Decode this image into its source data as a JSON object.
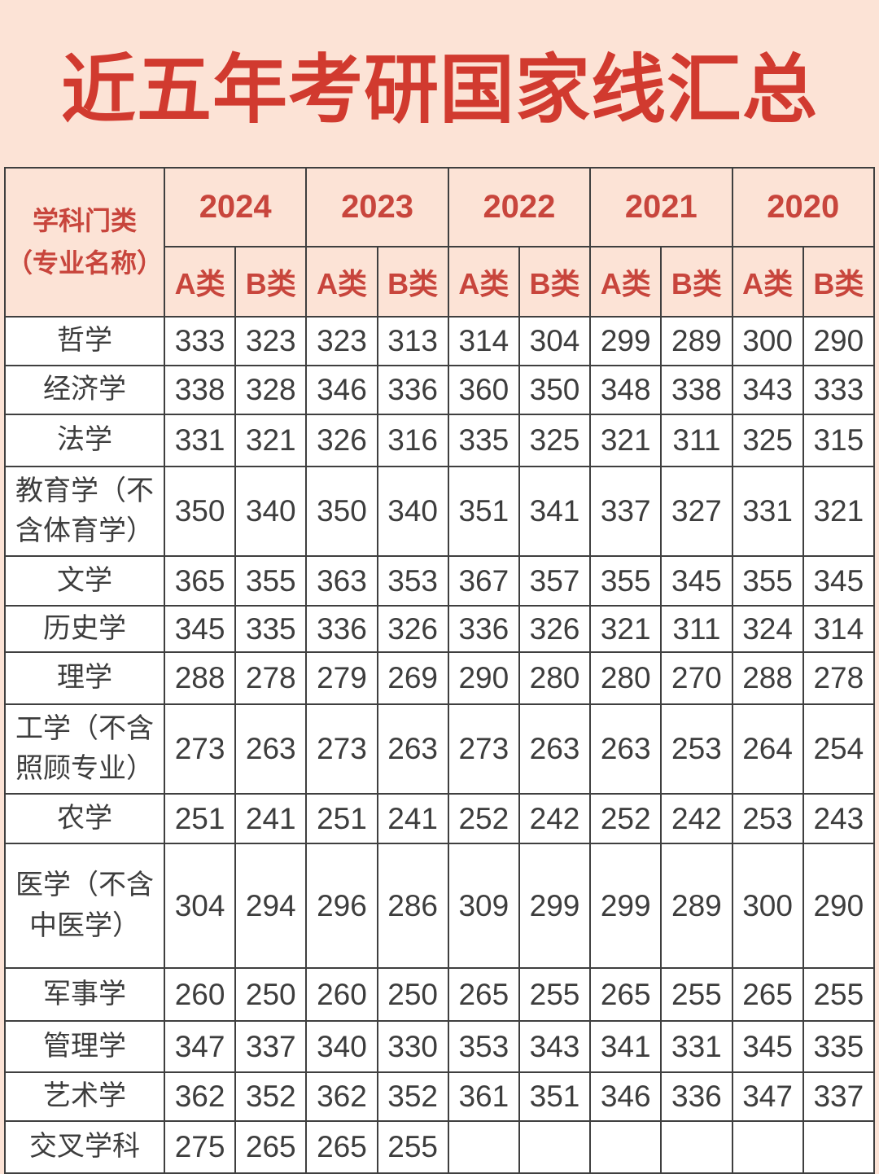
{
  "colors": {
    "background": "#fce3d6",
    "title_red": "#d13a2f",
    "header_red": "#c8453c",
    "grid_line": "#3f3f3f",
    "cell_text": "#3d3d3d",
    "cell_background": "#ffffff"
  },
  "chart_data": {
    "type": "table",
    "title": "近五年考研国家线汇总",
    "corner_header": {
      "line1": "学科门类",
      "line2": "（专业名称）"
    },
    "year_columns": [
      "2024",
      "2023",
      "2022",
      "2021",
      "2020"
    ],
    "class_labels": [
      "A类",
      "B类"
    ],
    "rows": [
      {
        "label": "哲学",
        "values": [
          "333",
          "323",
          "323",
          "313",
          "314",
          "304",
          "299",
          "289",
          "300",
          "290"
        ]
      },
      {
        "label": "经济学",
        "values": [
          "338",
          "328",
          "346",
          "336",
          "360",
          "350",
          "348",
          "338",
          "343",
          "333"
        ]
      },
      {
        "label": "法学",
        "values": [
          "331",
          "321",
          "326",
          "316",
          "335",
          "325",
          "321",
          "311",
          "325",
          "315"
        ]
      },
      {
        "label": "教育学（不含体育学）",
        "values": [
          "350",
          "340",
          "350",
          "340",
          "351",
          "341",
          "337",
          "327",
          "331",
          "321"
        ]
      },
      {
        "label": "文学",
        "values": [
          "365",
          "355",
          "363",
          "353",
          "367",
          "357",
          "355",
          "345",
          "355",
          "345"
        ]
      },
      {
        "label": "历史学",
        "values": [
          "345",
          "335",
          "336",
          "326",
          "336",
          "326",
          "321",
          "311",
          "324",
          "314"
        ]
      },
      {
        "label": "理学",
        "values": [
          "288",
          "278",
          "279",
          "269",
          "290",
          "280",
          "280",
          "270",
          "288",
          "278"
        ]
      },
      {
        "label": "工学（不含照顾专业）",
        "values": [
          "273",
          "263",
          "273",
          "263",
          "273",
          "263",
          "263",
          "253",
          "264",
          "254"
        ]
      },
      {
        "label": "农学",
        "values": [
          "251",
          "241",
          "251",
          "241",
          "252",
          "242",
          "252",
          "242",
          "253",
          "243"
        ]
      },
      {
        "label": "医学（不含中医学）",
        "values": [
          "304",
          "294",
          "296",
          "286",
          "309",
          "299",
          "299",
          "289",
          "300",
          "290"
        ]
      },
      {
        "label": "军事学",
        "values": [
          "260",
          "250",
          "260",
          "250",
          "265",
          "255",
          "265",
          "255",
          "265",
          "255"
        ]
      },
      {
        "label": "管理学",
        "values": [
          "347",
          "337",
          "340",
          "330",
          "353",
          "343",
          "341",
          "331",
          "345",
          "335"
        ]
      },
      {
        "label": "艺术学",
        "values": [
          "362",
          "352",
          "362",
          "352",
          "361",
          "351",
          "346",
          "336",
          "347",
          "337"
        ]
      },
      {
        "label": "交叉学科",
        "values": [
          "275",
          "265",
          "265",
          "255",
          "",
          "",
          "",
          "",
          "",
          ""
        ]
      }
    ]
  }
}
